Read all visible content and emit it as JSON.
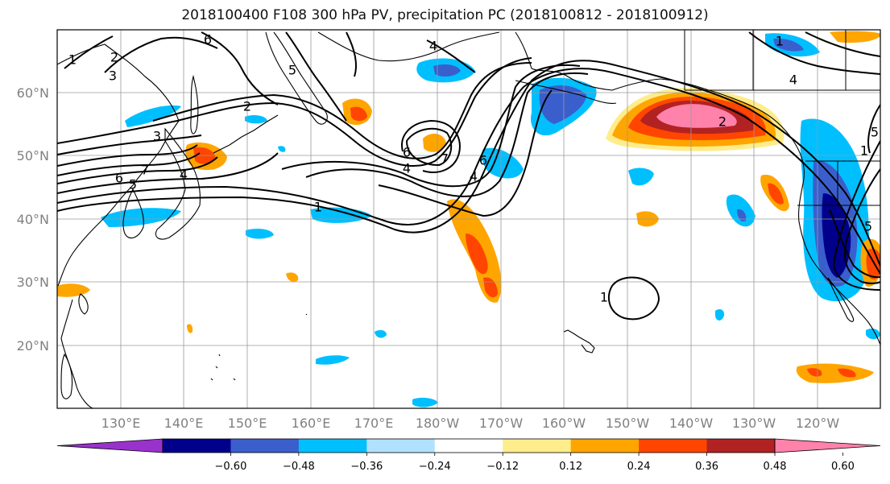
{
  "title": "2018100400 F108 300 hPa PV, precipitation PC (2018100812 - 2018100912)",
  "latitudes": [
    "60°N",
    "50°N",
    "40°N",
    "30°N",
    "20°N"
  ],
  "longitudes": [
    "130°E",
    "140°E",
    "150°E",
    "160°E",
    "170°E",
    "180°W",
    "170°W",
    "160°W",
    "150°W",
    "140°W",
    "130°W",
    "120°W"
  ],
  "colorbar": {
    "ticks": [
      "−0.60",
      "−0.48",
      "−0.36",
      "−0.24",
      "−0.12",
      "0.12",
      "0.24",
      "0.36",
      "0.48",
      "0.60"
    ],
    "colors": [
      "#9932cc",
      "#00008b",
      "#3a5fcd",
      "#00bfff",
      "#b0e2ff",
      "#ffffff",
      "#ffec8b",
      "#ffa500",
      "#ff4500",
      "#b22222",
      "#ff82ab"
    ]
  },
  "contour_labels": [
    "1",
    "2",
    "3",
    "4",
    "5",
    "6",
    "7",
    "6",
    "4",
    "3",
    "2",
    "1",
    "5",
    "6",
    "4",
    "7",
    "6",
    "4",
    "1",
    "1",
    "2",
    "5",
    "1",
    "4",
    "5"
  ]
}
